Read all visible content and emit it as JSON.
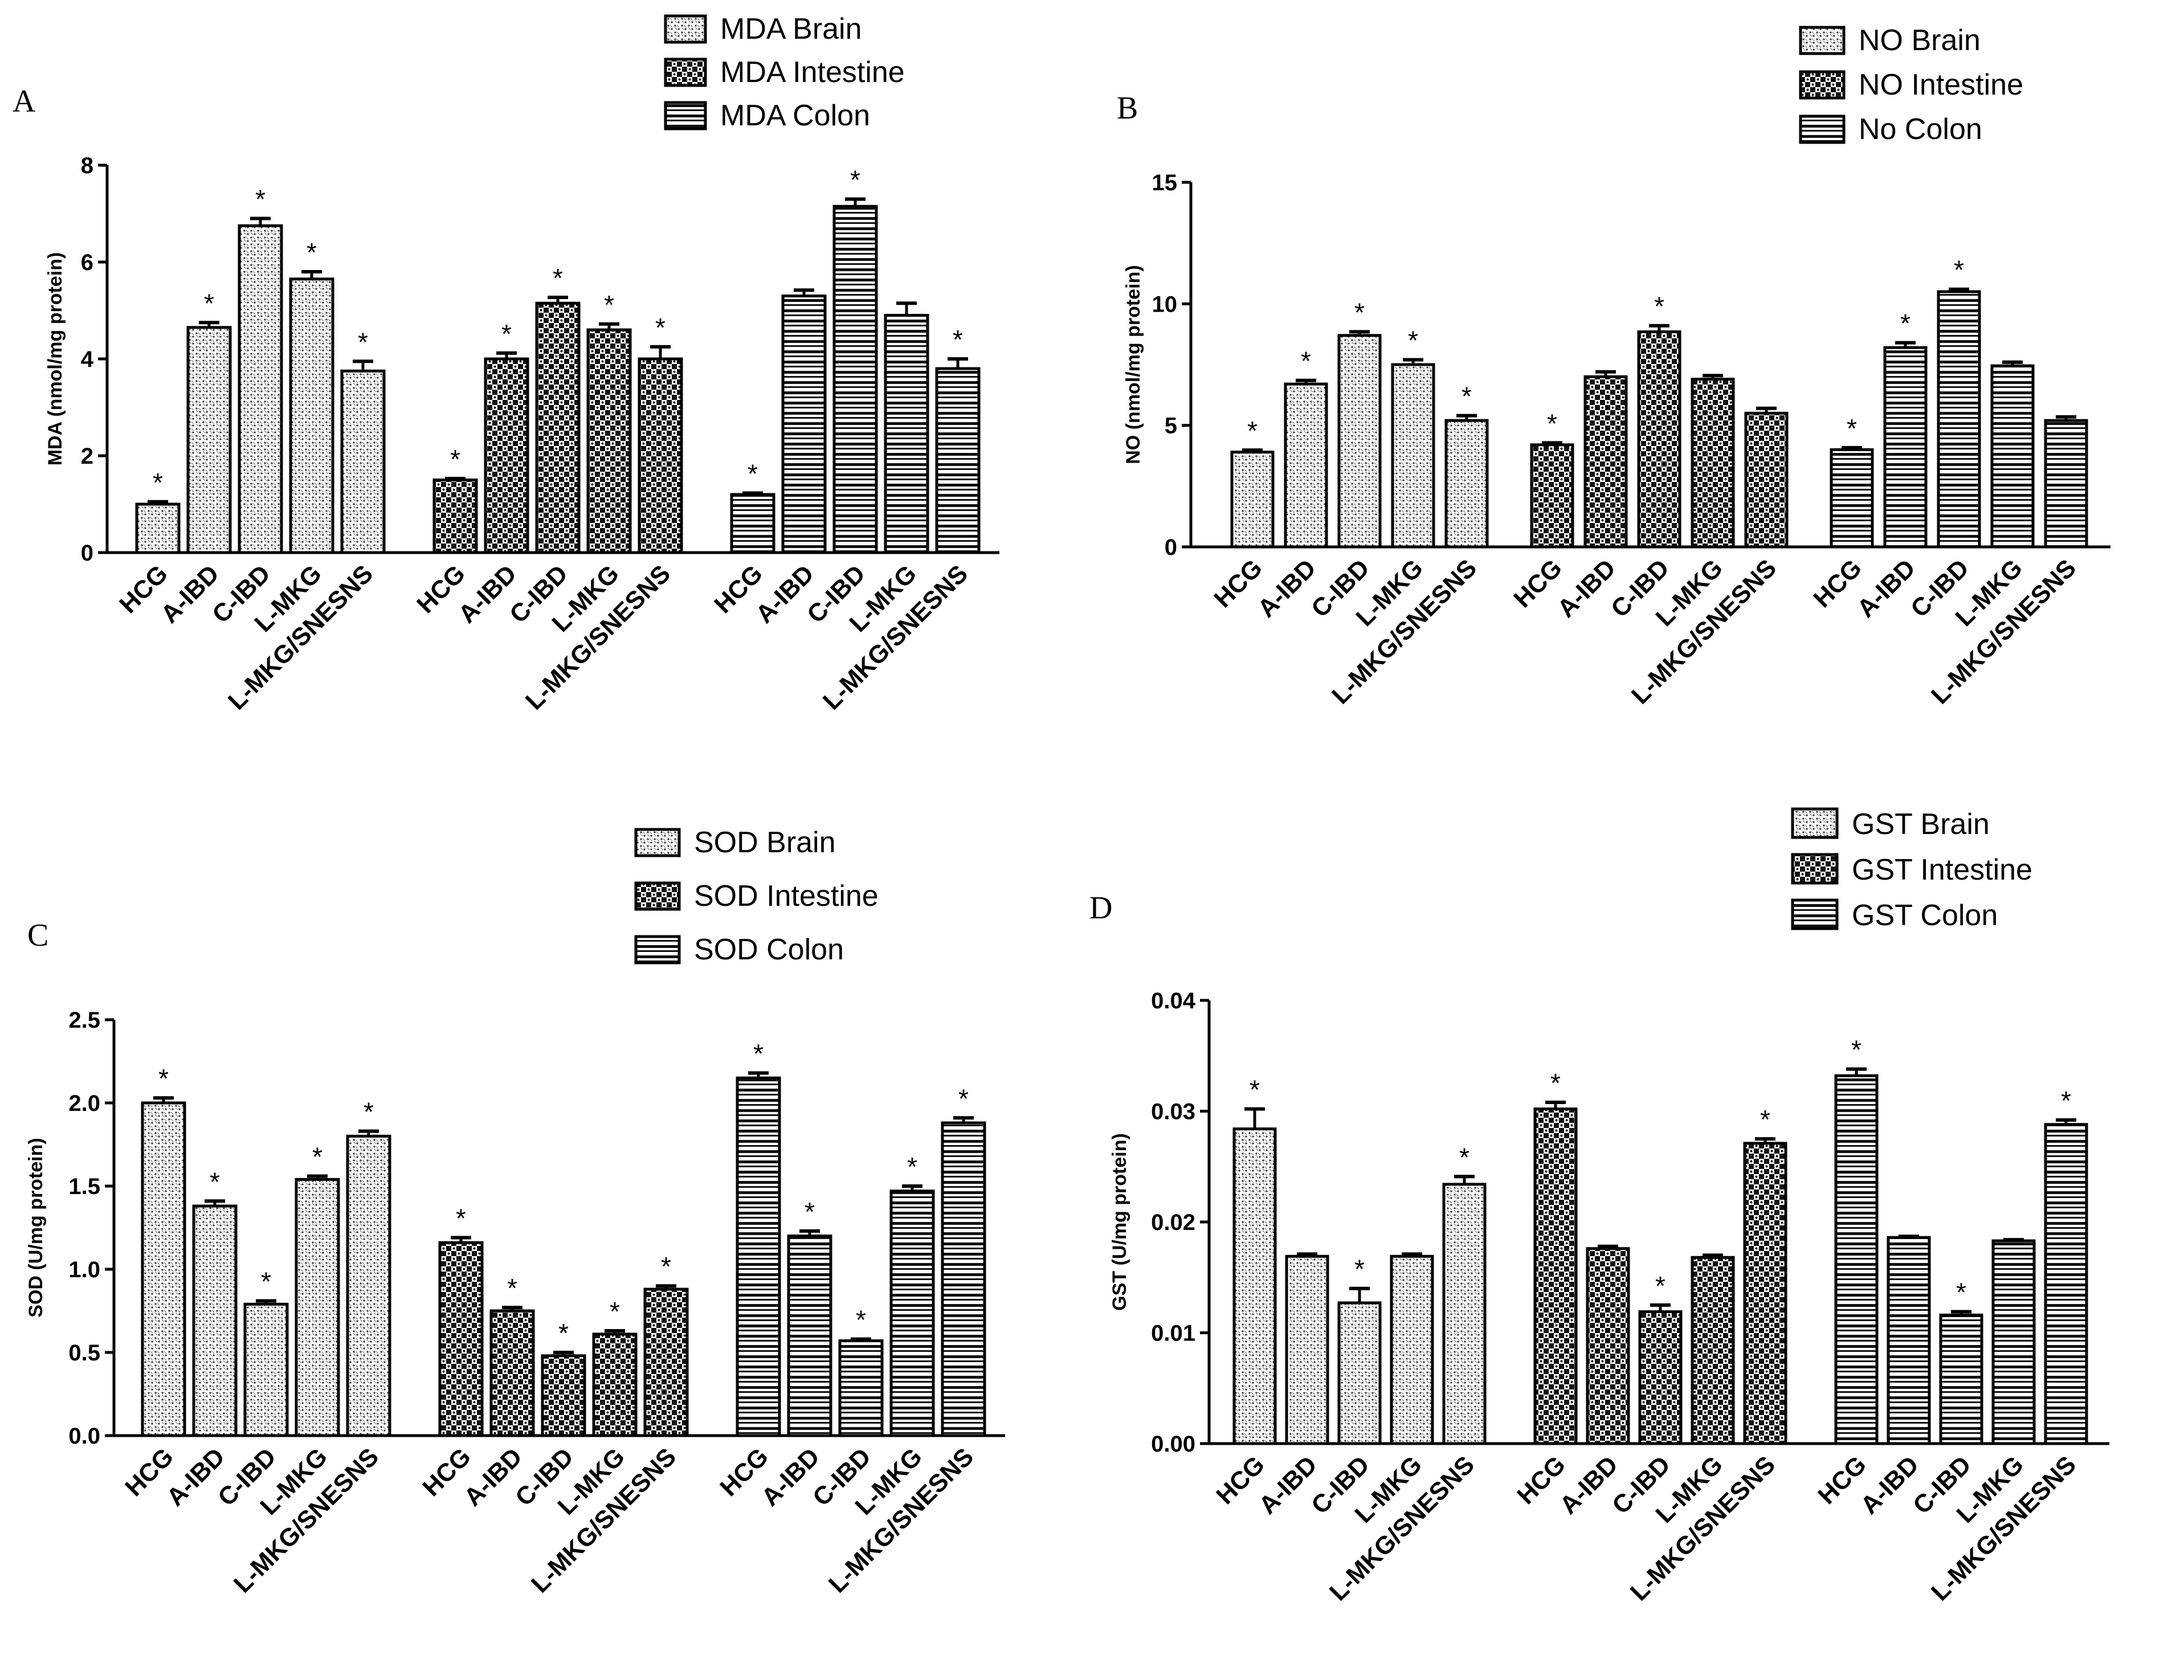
{
  "chart_data": [
    {
      "type": "bar",
      "panel": "A",
      "ylabel": "MDA (nmol/mg protein)",
      "ylim": [
        0,
        8
      ],
      "yticks": [
        "0",
        "2",
        "4",
        "6",
        "8"
      ],
      "categories": [
        "HCG",
        "A-IBD",
        "C-IBD",
        "L-MKG",
        "L-MKG/SNESNS"
      ],
      "legend_position": "top-center",
      "series": [
        {
          "name": "MDA Brain",
          "pattern": "dots",
          "values": [
            1.0,
            4.65,
            6.75,
            5.65,
            3.75
          ],
          "errors": [
            0.05,
            0.1,
            0.15,
            0.15,
            0.2
          ],
          "significant": [
            true,
            true,
            true,
            true,
            true
          ]
        },
        {
          "name": "MDA Intestine",
          "pattern": "checker",
          "values": [
            1.5,
            4.0,
            5.15,
            4.6,
            4.0
          ],
          "errors": [
            0.03,
            0.12,
            0.12,
            0.12,
            0.25
          ],
          "significant": [
            true,
            true,
            true,
            true,
            true
          ]
        },
        {
          "name": "MDA Colon",
          "pattern": "hlines",
          "values": [
            1.2,
            5.3,
            7.15,
            4.9,
            3.8
          ],
          "errors": [
            0.03,
            0.12,
            0.15,
            0.25,
            0.2
          ],
          "significant": [
            true,
            false,
            true,
            false,
            true
          ]
        }
      ]
    },
    {
      "type": "bar",
      "panel": "B",
      "ylabel": "NO (nmol/mg protein)",
      "ylim": [
        0,
        15
      ],
      "yticks": [
        "0",
        "5",
        "10",
        "15"
      ],
      "categories": [
        "HCG",
        "A-IBD",
        "C-IBD",
        "L-MKG",
        "L-MKG/SNESNS"
      ],
      "legend_position": "top-right",
      "series": [
        {
          "name": "NO Brain",
          "pattern": "dots",
          "values": [
            3.9,
            6.7,
            8.7,
            7.5,
            5.2
          ],
          "errors": [
            0.08,
            0.15,
            0.15,
            0.2,
            0.2
          ],
          "significant": [
            true,
            true,
            true,
            true,
            true
          ]
        },
        {
          "name": "NO Intestine",
          "pattern": "checker",
          "values": [
            4.2,
            7.0,
            8.85,
            6.9,
            5.5
          ],
          "errors": [
            0.08,
            0.2,
            0.25,
            0.15,
            0.2
          ],
          "significant": [
            true,
            false,
            true,
            false,
            false
          ]
        },
        {
          "name": "No Colon",
          "pattern": "hlines",
          "values": [
            4.0,
            8.2,
            10.5,
            7.45,
            5.2
          ],
          "errors": [
            0.08,
            0.2,
            0.1,
            0.15,
            0.15
          ],
          "significant": [
            true,
            true,
            true,
            false,
            false
          ]
        }
      ]
    },
    {
      "type": "bar",
      "panel": "C",
      "ylabel": "SOD (U/mg protein)",
      "ylim": [
        0,
        2.5
      ],
      "yticks": [
        "0.0",
        "0.5",
        "1.0",
        "1.5",
        "2.0",
        "2.5"
      ],
      "categories": [
        "HCG",
        "A-IBD",
        "C-IBD",
        "L-MKG",
        "L-MKG/SNESNS"
      ],
      "legend_position": "top-center",
      "series": [
        {
          "name": "SOD Brain",
          "pattern": "dots",
          "values": [
            2.0,
            1.38,
            0.79,
            1.54,
            1.8
          ],
          "errors": [
            0.03,
            0.03,
            0.02,
            0.02,
            0.03
          ],
          "significant": [
            true,
            true,
            true,
            true,
            true
          ]
        },
        {
          "name": "SOD Intestine",
          "pattern": "checker",
          "values": [
            1.16,
            0.75,
            0.48,
            0.61,
            0.88
          ],
          "errors": [
            0.03,
            0.02,
            0.02,
            0.02,
            0.02
          ],
          "significant": [
            true,
            true,
            true,
            true,
            true
          ]
        },
        {
          "name": "SOD Colon",
          "pattern": "hlines",
          "values": [
            2.15,
            1.2,
            0.57,
            1.47,
            1.88
          ],
          "errors": [
            0.03,
            0.03,
            0.01,
            0.03,
            0.03
          ],
          "significant": [
            true,
            true,
            true,
            true,
            true
          ]
        }
      ]
    },
    {
      "type": "bar",
      "panel": "D",
      "ylabel": "GST (U/mg protein)",
      "ylim": [
        0,
        0.04
      ],
      "yticks": [
        "0.00",
        "0.01",
        "0.02",
        "0.03",
        "0.04"
      ],
      "categories": [
        "HCG",
        "A-IBD",
        "C-IBD",
        "L-MKG",
        "L-MKG/SNESNS"
      ],
      "legend_position": "top-right",
      "series": [
        {
          "name": "GST Brain",
          "pattern": "dots",
          "values": [
            0.0284,
            0.0169,
            0.0127,
            0.0169,
            0.0234
          ],
          "errors": [
            0.0018,
            0.0002,
            0.0013,
            0.0002,
            0.0007
          ],
          "significant": [
            true,
            false,
            true,
            false,
            true
          ]
        },
        {
          "name": "GST Intestine",
          "pattern": "checker",
          "values": [
            0.0302,
            0.0176,
            0.0119,
            0.0168,
            0.0271
          ],
          "errors": [
            0.0006,
            0.0002,
            0.0006,
            0.0002,
            0.0004
          ],
          "significant": [
            true,
            false,
            true,
            false,
            true
          ]
        },
        {
          "name": "GST Colon",
          "pattern": "hlines",
          "values": [
            0.0332,
            0.0186,
            0.0116,
            0.0183,
            0.0288
          ],
          "errors": [
            0.0006,
            0.0001,
            0.0003,
            0.0001,
            0.0004
          ],
          "significant": [
            true,
            false,
            true,
            false,
            true
          ]
        }
      ]
    }
  ],
  "significance_marker": "*"
}
